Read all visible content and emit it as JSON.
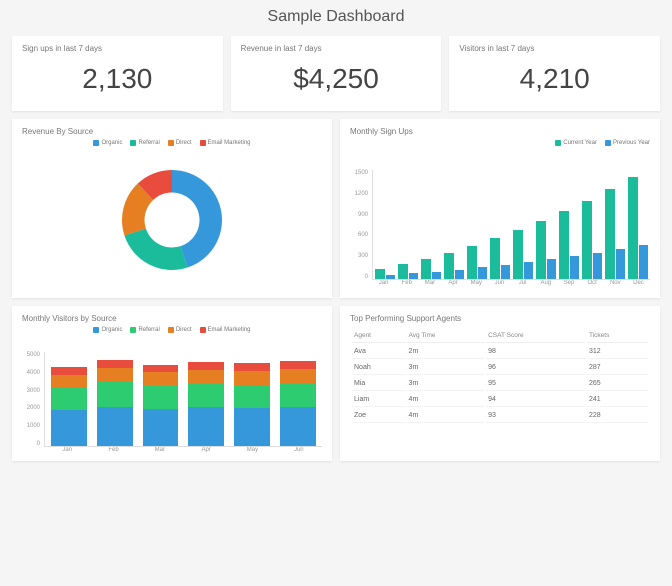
{
  "title": "Sample Dashboard",
  "colors": {
    "bg": "#f5f5f5",
    "card": "#ffffff",
    "text": "#555555",
    "muted": "#999999",
    "teal": "#1abc9c",
    "blue": "#3498db",
    "orange": "#e67e22",
    "red": "#e74c3c",
    "green": "#2ecc71"
  },
  "kpis": [
    {
      "label": "Sign ups in last 7 days",
      "value": "2,130"
    },
    {
      "label": "Revenue in last 7 days",
      "value": "$4,250"
    },
    {
      "label": "Visitors in last 7 days",
      "value": "4,210"
    }
  ],
  "revenue_by_source": {
    "title": "Revenue By Source",
    "type": "donut",
    "legend": [
      {
        "label": "Organic",
        "color": "#3498db"
      },
      {
        "label": "Referral",
        "color": "#1abc9c"
      },
      {
        "label": "Direct",
        "color": "#e67e22"
      },
      {
        "label": "Email Marketing",
        "color": "#e74c3c"
      }
    ],
    "slices": [
      {
        "value": 45,
        "color": "#3498db"
      },
      {
        "value": 25,
        "color": "#1abc9c"
      },
      {
        "value": 18,
        "color": "#e67e22"
      },
      {
        "value": 12,
        "color": "#e74c3c"
      }
    ],
    "inner_ratio": 0.55
  },
  "monthly_signups": {
    "title": "Monthly Sign Ups",
    "type": "grouped-bar",
    "legend": [
      {
        "label": "Current Year",
        "color": "#1abc9c"
      },
      {
        "label": "Previous Year",
        "color": "#3498db"
      }
    ],
    "categories": [
      "Jan",
      "Feb",
      "Mar",
      "Apr",
      "May",
      "Jun",
      "Jul",
      "Aug",
      "Sep",
      "Oct",
      "Nov",
      "Dec"
    ],
    "series": [
      {
        "name": "Current Year",
        "color": "#1abc9c",
        "values": [
          140,
          200,
          280,
          360,
          460,
          560,
          680,
          800,
          940,
          1080,
          1240,
          1400
        ]
      },
      {
        "name": "Previous Year",
        "color": "#3498db",
        "values": [
          60,
          80,
          100,
          130,
          160,
          190,
          230,
          270,
          310,
          360,
          410,
          470
        ]
      }
    ],
    "ylim": [
      0,
      1500
    ],
    "yticks": [
      0,
      300,
      600,
      900,
      1200,
      1500
    ]
  },
  "monthly_visitors": {
    "title": "Monthly Visitors by Source",
    "type": "stacked-bar",
    "legend": [
      {
        "label": "Organic",
        "color": "#3498db"
      },
      {
        "label": "Referral",
        "color": "#2ecc71"
      },
      {
        "label": "Direct",
        "color": "#e67e22"
      },
      {
        "label": "Email Marketing",
        "color": "#e74c3c"
      }
    ],
    "categories": [
      "Jan",
      "Feb",
      "Mar",
      "Apr",
      "May",
      "Jun"
    ],
    "stacks": [
      [
        1900,
        1200,
        700,
        400
      ],
      [
        2100,
        1300,
        750,
        430
      ],
      [
        1950,
        1250,
        720,
        410
      ],
      [
        2050,
        1280,
        740,
        420
      ],
      [
        2000,
        1260,
        730,
        415
      ],
      [
        2080,
        1290,
        745,
        425
      ]
    ],
    "stack_colors": [
      "#3498db",
      "#2ecc71",
      "#e67e22",
      "#e74c3c"
    ],
    "ylim": [
      0,
      5000
    ],
    "yticks": [
      0,
      1000,
      2000,
      3000,
      4000,
      5000
    ]
  },
  "top_agents": {
    "title": "Top Performing Support Agents",
    "columns": [
      "Agent",
      "Avg Time",
      "CSAT Score",
      "Tickets"
    ],
    "rows": [
      [
        "Ava",
        "2m",
        "98",
        "312"
      ],
      [
        "Noah",
        "3m",
        "96",
        "287"
      ],
      [
        "Mia",
        "3m",
        "95",
        "265"
      ],
      [
        "Liam",
        "4m",
        "94",
        "241"
      ],
      [
        "Zoe",
        "4m",
        "93",
        "228"
      ]
    ]
  }
}
